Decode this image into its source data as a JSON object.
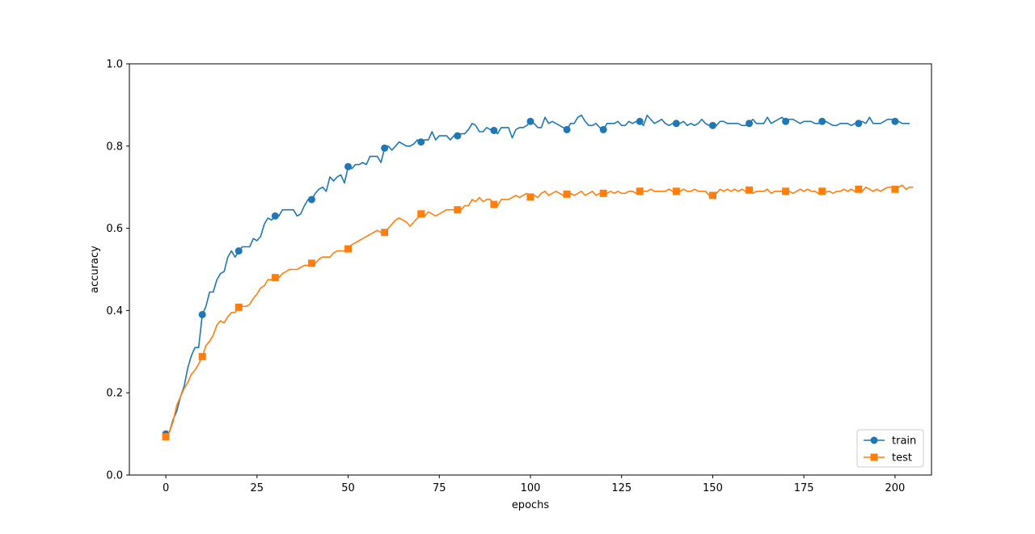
{
  "chart_data": {
    "type": "line",
    "xlabel": "epochs",
    "ylabel": "accuracy",
    "xlim": [
      -10,
      210
    ],
    "ylim": [
      0.0,
      1.0
    ],
    "x_ticks": [
      0,
      25,
      50,
      75,
      100,
      125,
      150,
      175,
      200
    ],
    "y_ticks": [
      0.0,
      0.2,
      0.4,
      0.6,
      0.8,
      1.0
    ],
    "x_tick_labels": [
      "0",
      "25",
      "50",
      "75",
      "100",
      "125",
      "150",
      "175",
      "200"
    ],
    "y_tick_labels": [
      "0.0",
      "0.2",
      "0.4",
      "0.6",
      "0.8",
      "1.0"
    ],
    "grid": false,
    "legend_position": "lower right",
    "marker_every": 10,
    "series": [
      {
        "name": "train",
        "color": "#1f77b4",
        "marker": "circle",
        "values": [
          0.1,
          0.105,
          0.135,
          0.155,
          0.19,
          0.215,
          0.26,
          0.29,
          0.31,
          0.31,
          0.39,
          0.41,
          0.445,
          0.445,
          0.475,
          0.49,
          0.495,
          0.53,
          0.545,
          0.53,
          0.545,
          0.555,
          0.555,
          0.555,
          0.575,
          0.57,
          0.58,
          0.61,
          0.625,
          0.62,
          0.63,
          0.63,
          0.645,
          0.645,
          0.645,
          0.645,
          0.63,
          0.635,
          0.655,
          0.67,
          0.67,
          0.685,
          0.695,
          0.7,
          0.69,
          0.725,
          0.715,
          0.725,
          0.73,
          0.71,
          0.75,
          0.745,
          0.755,
          0.755,
          0.76,
          0.755,
          0.775,
          0.775,
          0.775,
          0.76,
          0.795,
          0.8,
          0.79,
          0.8,
          0.81,
          0.805,
          0.8,
          0.8,
          0.805,
          0.815,
          0.81,
          0.815,
          0.815,
          0.835,
          0.815,
          0.825,
          0.825,
          0.825,
          0.815,
          0.825,
          0.825,
          0.83,
          0.83,
          0.84,
          0.855,
          0.85,
          0.835,
          0.835,
          0.845,
          0.84,
          0.838,
          0.83,
          0.845,
          0.845,
          0.845,
          0.82,
          0.84,
          0.845,
          0.845,
          0.85,
          0.86,
          0.855,
          0.845,
          0.845,
          0.87,
          0.855,
          0.86,
          0.855,
          0.85,
          0.845,
          0.84,
          0.855,
          0.855,
          0.87,
          0.875,
          0.86,
          0.85,
          0.85,
          0.855,
          0.845,
          0.84,
          0.855,
          0.855,
          0.855,
          0.86,
          0.85,
          0.85,
          0.86,
          0.855,
          0.86,
          0.86,
          0.85,
          0.875,
          0.865,
          0.855,
          0.86,
          0.865,
          0.855,
          0.85,
          0.855,
          0.855,
          0.855,
          0.86,
          0.85,
          0.855,
          0.85,
          0.855,
          0.865,
          0.855,
          0.85,
          0.85,
          0.85,
          0.86,
          0.86,
          0.855,
          0.855,
          0.855,
          0.855,
          0.85,
          0.85,
          0.855,
          0.865,
          0.855,
          0.855,
          0.855,
          0.87,
          0.855,
          0.86,
          0.865,
          0.87,
          0.86,
          0.865,
          0.865,
          0.86,
          0.855,
          0.86,
          0.86,
          0.86,
          0.855,
          0.855,
          0.86,
          0.86,
          0.855,
          0.85,
          0.85,
          0.855,
          0.855,
          0.855,
          0.85,
          0.855,
          0.855,
          0.86,
          0.855,
          0.87,
          0.855,
          0.855,
          0.855,
          0.86,
          0.865,
          0.865,
          0.86,
          0.86,
          0.855,
          0.855,
          0.855
        ]
      },
      {
        "name": "test",
        "color": "#ff7f0e",
        "marker": "square",
        "values": [
          0.093,
          0.105,
          0.13,
          0.17,
          0.19,
          0.21,
          0.225,
          0.245,
          0.255,
          0.27,
          0.288,
          0.315,
          0.325,
          0.34,
          0.365,
          0.375,
          0.37,
          0.385,
          0.395,
          0.395,
          0.408,
          0.41,
          0.41,
          0.415,
          0.43,
          0.44,
          0.455,
          0.46,
          0.475,
          0.475,
          0.48,
          0.48,
          0.49,
          0.495,
          0.5,
          0.5,
          0.5,
          0.505,
          0.51,
          0.51,
          0.515,
          0.515,
          0.525,
          0.53,
          0.53,
          0.53,
          0.54,
          0.545,
          0.545,
          0.545,
          0.55,
          0.56,
          0.565,
          0.57,
          0.575,
          0.58,
          0.585,
          0.59,
          0.595,
          0.59,
          0.59,
          0.6,
          0.61,
          0.62,
          0.625,
          0.62,
          0.615,
          0.605,
          0.615,
          0.625,
          0.635,
          0.63,
          0.64,
          0.635,
          0.63,
          0.635,
          0.64,
          0.645,
          0.645,
          0.645,
          0.645,
          0.645,
          0.655,
          0.655,
          0.67,
          0.665,
          0.675,
          0.665,
          0.67,
          0.67,
          0.658,
          0.655,
          0.67,
          0.67,
          0.67,
          0.675,
          0.68,
          0.675,
          0.68,
          0.685,
          0.676,
          0.68,
          0.675,
          0.685,
          0.69,
          0.68,
          0.685,
          0.69,
          0.685,
          0.68,
          0.683,
          0.685,
          0.68,
          0.685,
          0.69,
          0.68,
          0.685,
          0.69,
          0.68,
          0.685,
          0.685,
          0.685,
          0.69,
          0.685,
          0.69,
          0.685,
          0.685,
          0.69,
          0.69,
          0.685,
          0.69,
          0.69,
          0.69,
          0.695,
          0.69,
          0.69,
          0.69,
          0.69,
          0.695,
          0.69,
          0.69,
          0.69,
          0.695,
          0.69,
          0.69,
          0.695,
          0.69,
          0.69,
          0.69,
          0.68,
          0.68,
          0.685,
          0.695,
          0.69,
          0.695,
          0.69,
          0.695,
          0.69,
          0.695,
          0.69,
          0.693,
          0.685,
          0.69,
          0.69,
          0.69,
          0.695,
          0.685,
          0.69,
          0.69,
          0.69,
          0.69,
          0.69,
          0.685,
          0.69,
          0.695,
          0.69,
          0.695,
          0.69,
          0.69,
          0.685,
          0.69,
          0.688,
          0.69,
          0.685,
          0.69,
          0.69,
          0.695,
          0.69,
          0.695,
          0.69,
          0.695,
          0.69,
          0.7,
          0.695,
          0.69,
          0.695,
          0.69,
          0.695,
          0.7,
          0.7,
          0.695,
          0.7,
          0.705,
          0.695,
          0.7,
          0.7
        ]
      }
    ]
  }
}
